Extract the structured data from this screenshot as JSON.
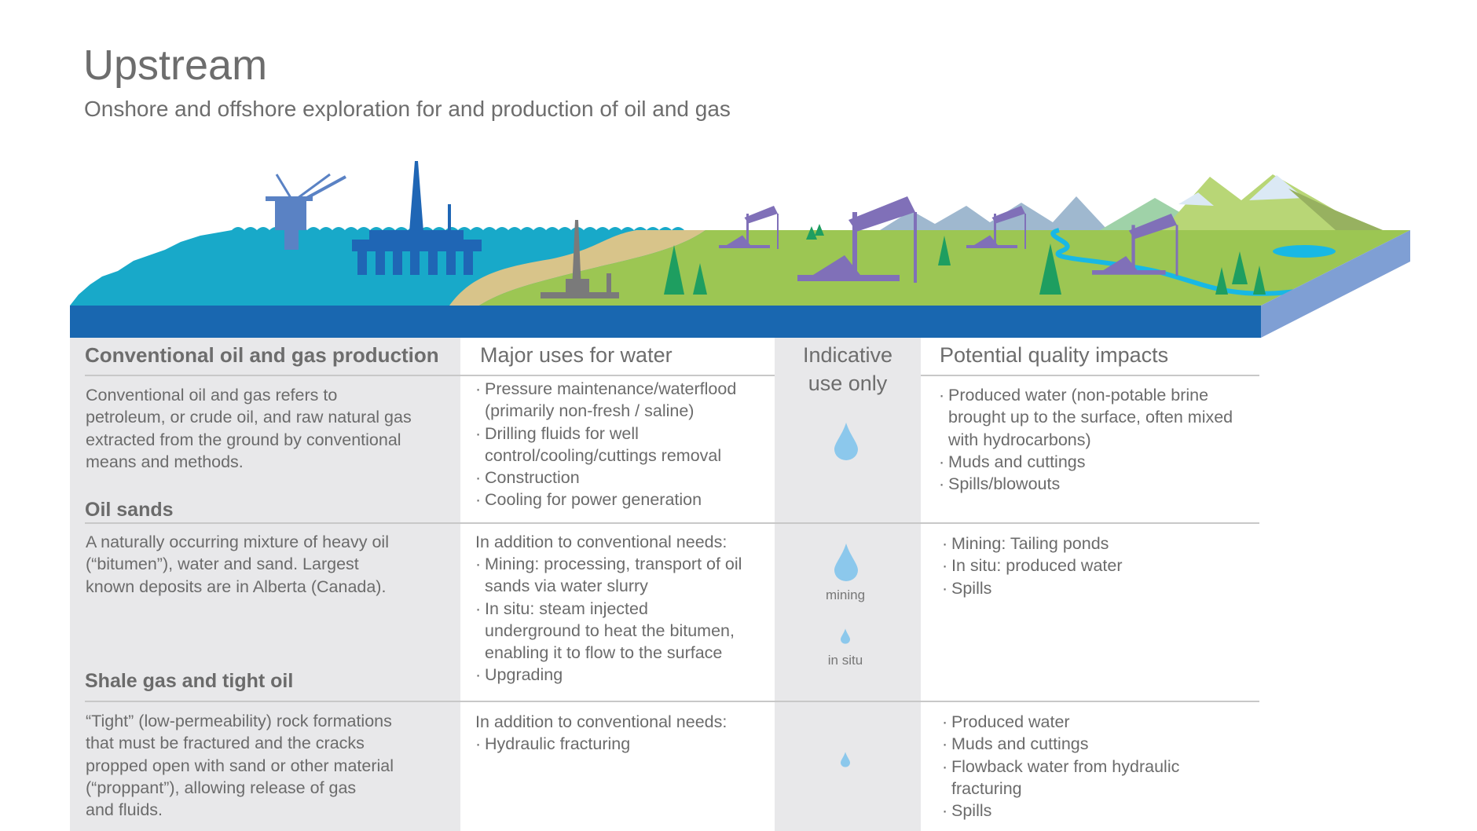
{
  "header": {
    "title": "Upstream",
    "subtitle": "Onshore and offshore exploration for and production of oil and gas"
  },
  "colors": {
    "sea": "#18a9c9",
    "base": "#1967b0",
    "base_side": "#7f9fd4",
    "land": "#9cc653",
    "sand": "#d8c48a",
    "pumpjack": "#8070b8",
    "tree": "#1e9e60",
    "drop": "#8cc8ec",
    "gray_column": "#e8e8ea"
  },
  "table": {
    "headers": [
      "Conventional oil and gas production",
      "Major uses for water",
      "Indicative\nuse only",
      "Potential quality impacts"
    ],
    "rows": [
      {
        "description": "Conventional oil and gas refers to\npetroleum, or crude oil, and raw natural gas\nextracted from the ground by conventional\nmeans and methods.",
        "uses": [
          "Pressure maintenance/waterflood\n(primarily non-fresh / saline)",
          "Drilling fluids for well\ncontrol/cooling/cuttings removal",
          "Construction",
          "Cooling for power generation"
        ],
        "impacts": [
          "Produced water (non-potable brine\nbrought up to the surface, often mixed\nwith hydrocarbons)",
          "Muds and cuttings",
          "Spills/blowouts"
        ],
        "indicative": "large drop"
      },
      {
        "title": "Oil sands",
        "description": "A naturally occurring mixture of heavy oil\n(“bitumen”), water and sand. Largest\nknown deposits are in Alberta (Canada).",
        "uses_intro": "In addition to conventional needs:",
        "uses": [
          "Mining: processing, transport of oil\nsands via water slurry",
          "In situ: steam injected\nunderground to heat the bitumen,\nenabling it to flow to the surface",
          "Upgrading"
        ],
        "indicative_labels": [
          "mining",
          "in situ"
        ],
        "impacts": [
          "Mining: Tailing ponds",
          "In situ: produced water",
          "Spills"
        ]
      },
      {
        "title": "Shale gas and tight oil",
        "description": "“Tight” (low-permeability) rock formations\nthat must be fractured and the cracks\npropped open with sand or other material\n(“proppant”), allowing release of gas\nand fluids.",
        "uses_intro": "In addition to conventional needs:",
        "uses": [
          "Hydraulic fracturing"
        ],
        "impacts": [
          "Produced water",
          "Muds and cuttings",
          "Flowback water from hydraulic\nfracturing",
          "Spills"
        ],
        "indicative": "small drop"
      }
    ]
  }
}
